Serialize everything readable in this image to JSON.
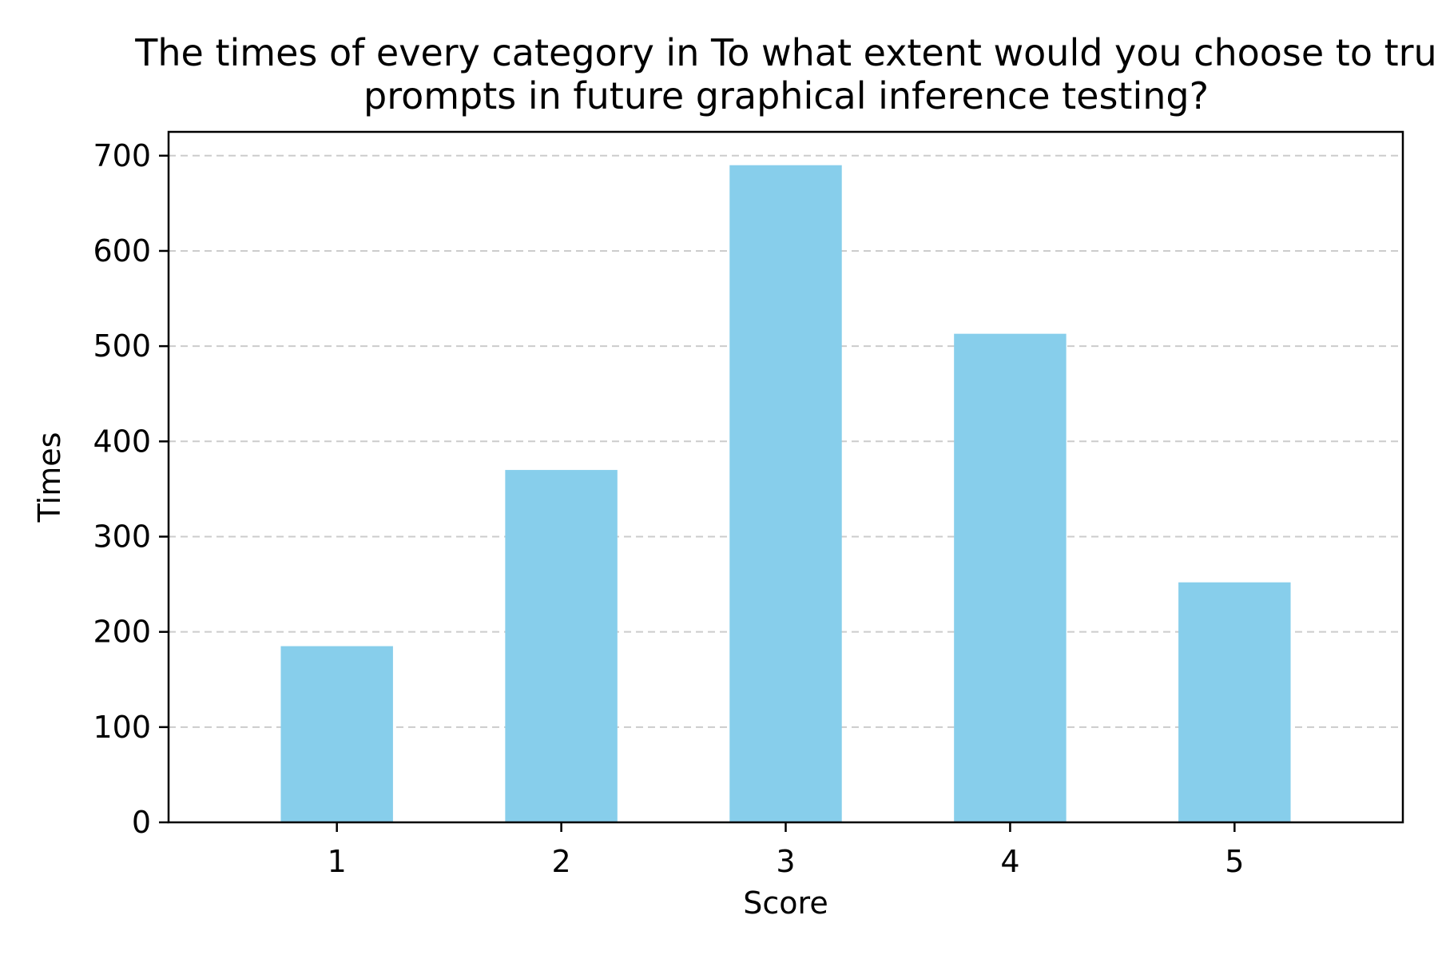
{
  "chart_data": {
    "type": "bar",
    "title_lines": [
      "The times of every category in To what extent would you choose to tru",
      "prompts in future graphical inference testing?"
    ],
    "xlabel": "Score",
    "ylabel": "Times",
    "categories": [
      "1",
      "2",
      "3",
      "4",
      "5"
    ],
    "values": [
      185,
      370,
      690,
      513,
      252
    ],
    "ylim": [
      0,
      725
    ],
    "yticks": [
      0,
      100,
      200,
      300,
      400,
      500,
      600,
      700
    ],
    "grid": "y-dashed",
    "bar_color": "#87CEEB"
  }
}
